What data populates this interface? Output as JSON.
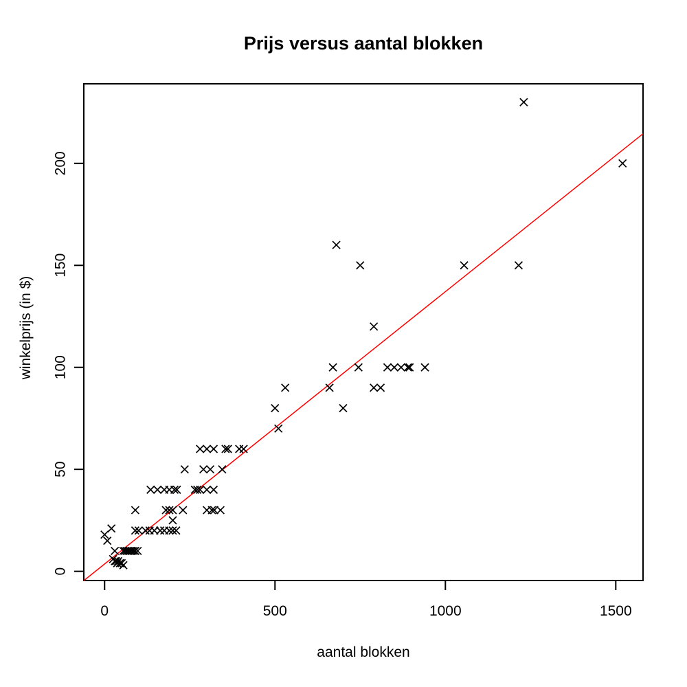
{
  "figure": {
    "background_color": "#FFFFFF",
    "axis_color": "#000000"
  },
  "chart_data": {
    "type": "scatter",
    "title": "Prijs versus aantal blokken",
    "xlabel": "aantal blokken",
    "ylabel": "winkelprijs (in $)",
    "x_ticks": [
      0,
      500,
      1000,
      1500
    ],
    "y_ticks": [
      0,
      50,
      100,
      150,
      200
    ],
    "xlim": [
      -61,
      1580
    ],
    "ylim": [
      -4.5,
      239
    ],
    "grid": false,
    "legend_position": "none",
    "marker": "x",
    "marker_color": "#000000",
    "regression_line": {
      "color": "#FF0000",
      "slope": 0.1335,
      "intercept": 3.6,
      "x_start": -61,
      "x_end": 1580
    },
    "points": [
      [
        25,
        6
      ],
      [
        30,
        5
      ],
      [
        34,
        5
      ],
      [
        37,
        4
      ],
      [
        40,
        5
      ],
      [
        45,
        4
      ],
      [
        50,
        4
      ],
      [
        55,
        3
      ],
      [
        30,
        10
      ],
      [
        55,
        10
      ],
      [
        60,
        10
      ],
      [
        65,
        10
      ],
      [
        70,
        10
      ],
      [
        75,
        10
      ],
      [
        80,
        10
      ],
      [
        85,
        10
      ],
      [
        90,
        10
      ],
      [
        97,
        10
      ],
      [
        0,
        18
      ],
      [
        8,
        15
      ],
      [
        20,
        21
      ],
      [
        90,
        20
      ],
      [
        100,
        20
      ],
      [
        120,
        20
      ],
      [
        132,
        20
      ],
      [
        146,
        20
      ],
      [
        163,
        20
      ],
      [
        175,
        20
      ],
      [
        190,
        20
      ],
      [
        200,
        20
      ],
      [
        210,
        20
      ],
      [
        200,
        25
      ],
      [
        90,
        30
      ],
      [
        180,
        30
      ],
      [
        190,
        30
      ],
      [
        200,
        30
      ],
      [
        230,
        30
      ],
      [
        300,
        30
      ],
      [
        315,
        30
      ],
      [
        322,
        30
      ],
      [
        340,
        30
      ],
      [
        135,
        40
      ],
      [
        155,
        40
      ],
      [
        175,
        40
      ],
      [
        190,
        40
      ],
      [
        205,
        40
      ],
      [
        212,
        40
      ],
      [
        265,
        40
      ],
      [
        272,
        40
      ],
      [
        280,
        40
      ],
      [
        300,
        40
      ],
      [
        320,
        40
      ],
      [
        235,
        50
      ],
      [
        290,
        50
      ],
      [
        310,
        50
      ],
      [
        345,
        50
      ],
      [
        280,
        60
      ],
      [
        300,
        60
      ],
      [
        320,
        60
      ],
      [
        355,
        60
      ],
      [
        362,
        60
      ],
      [
        395,
        60
      ],
      [
        408,
        60
      ],
      [
        510,
        70
      ],
      [
        500,
        80
      ],
      [
        700,
        80
      ],
      [
        530,
        90
      ],
      [
        660,
        90
      ],
      [
        790,
        90
      ],
      [
        810,
        90
      ],
      [
        670,
        100
      ],
      [
        745,
        100
      ],
      [
        830,
        100
      ],
      [
        850,
        100
      ],
      [
        870,
        100
      ],
      [
        890,
        100
      ],
      [
        895,
        100
      ],
      [
        940,
        100
      ],
      [
        790,
        120
      ],
      [
        750,
        150
      ],
      [
        1055,
        150
      ],
      [
        1215,
        150
      ],
      [
        680,
        160
      ],
      [
        1520,
        200
      ],
      [
        1230,
        230
      ]
    ]
  }
}
